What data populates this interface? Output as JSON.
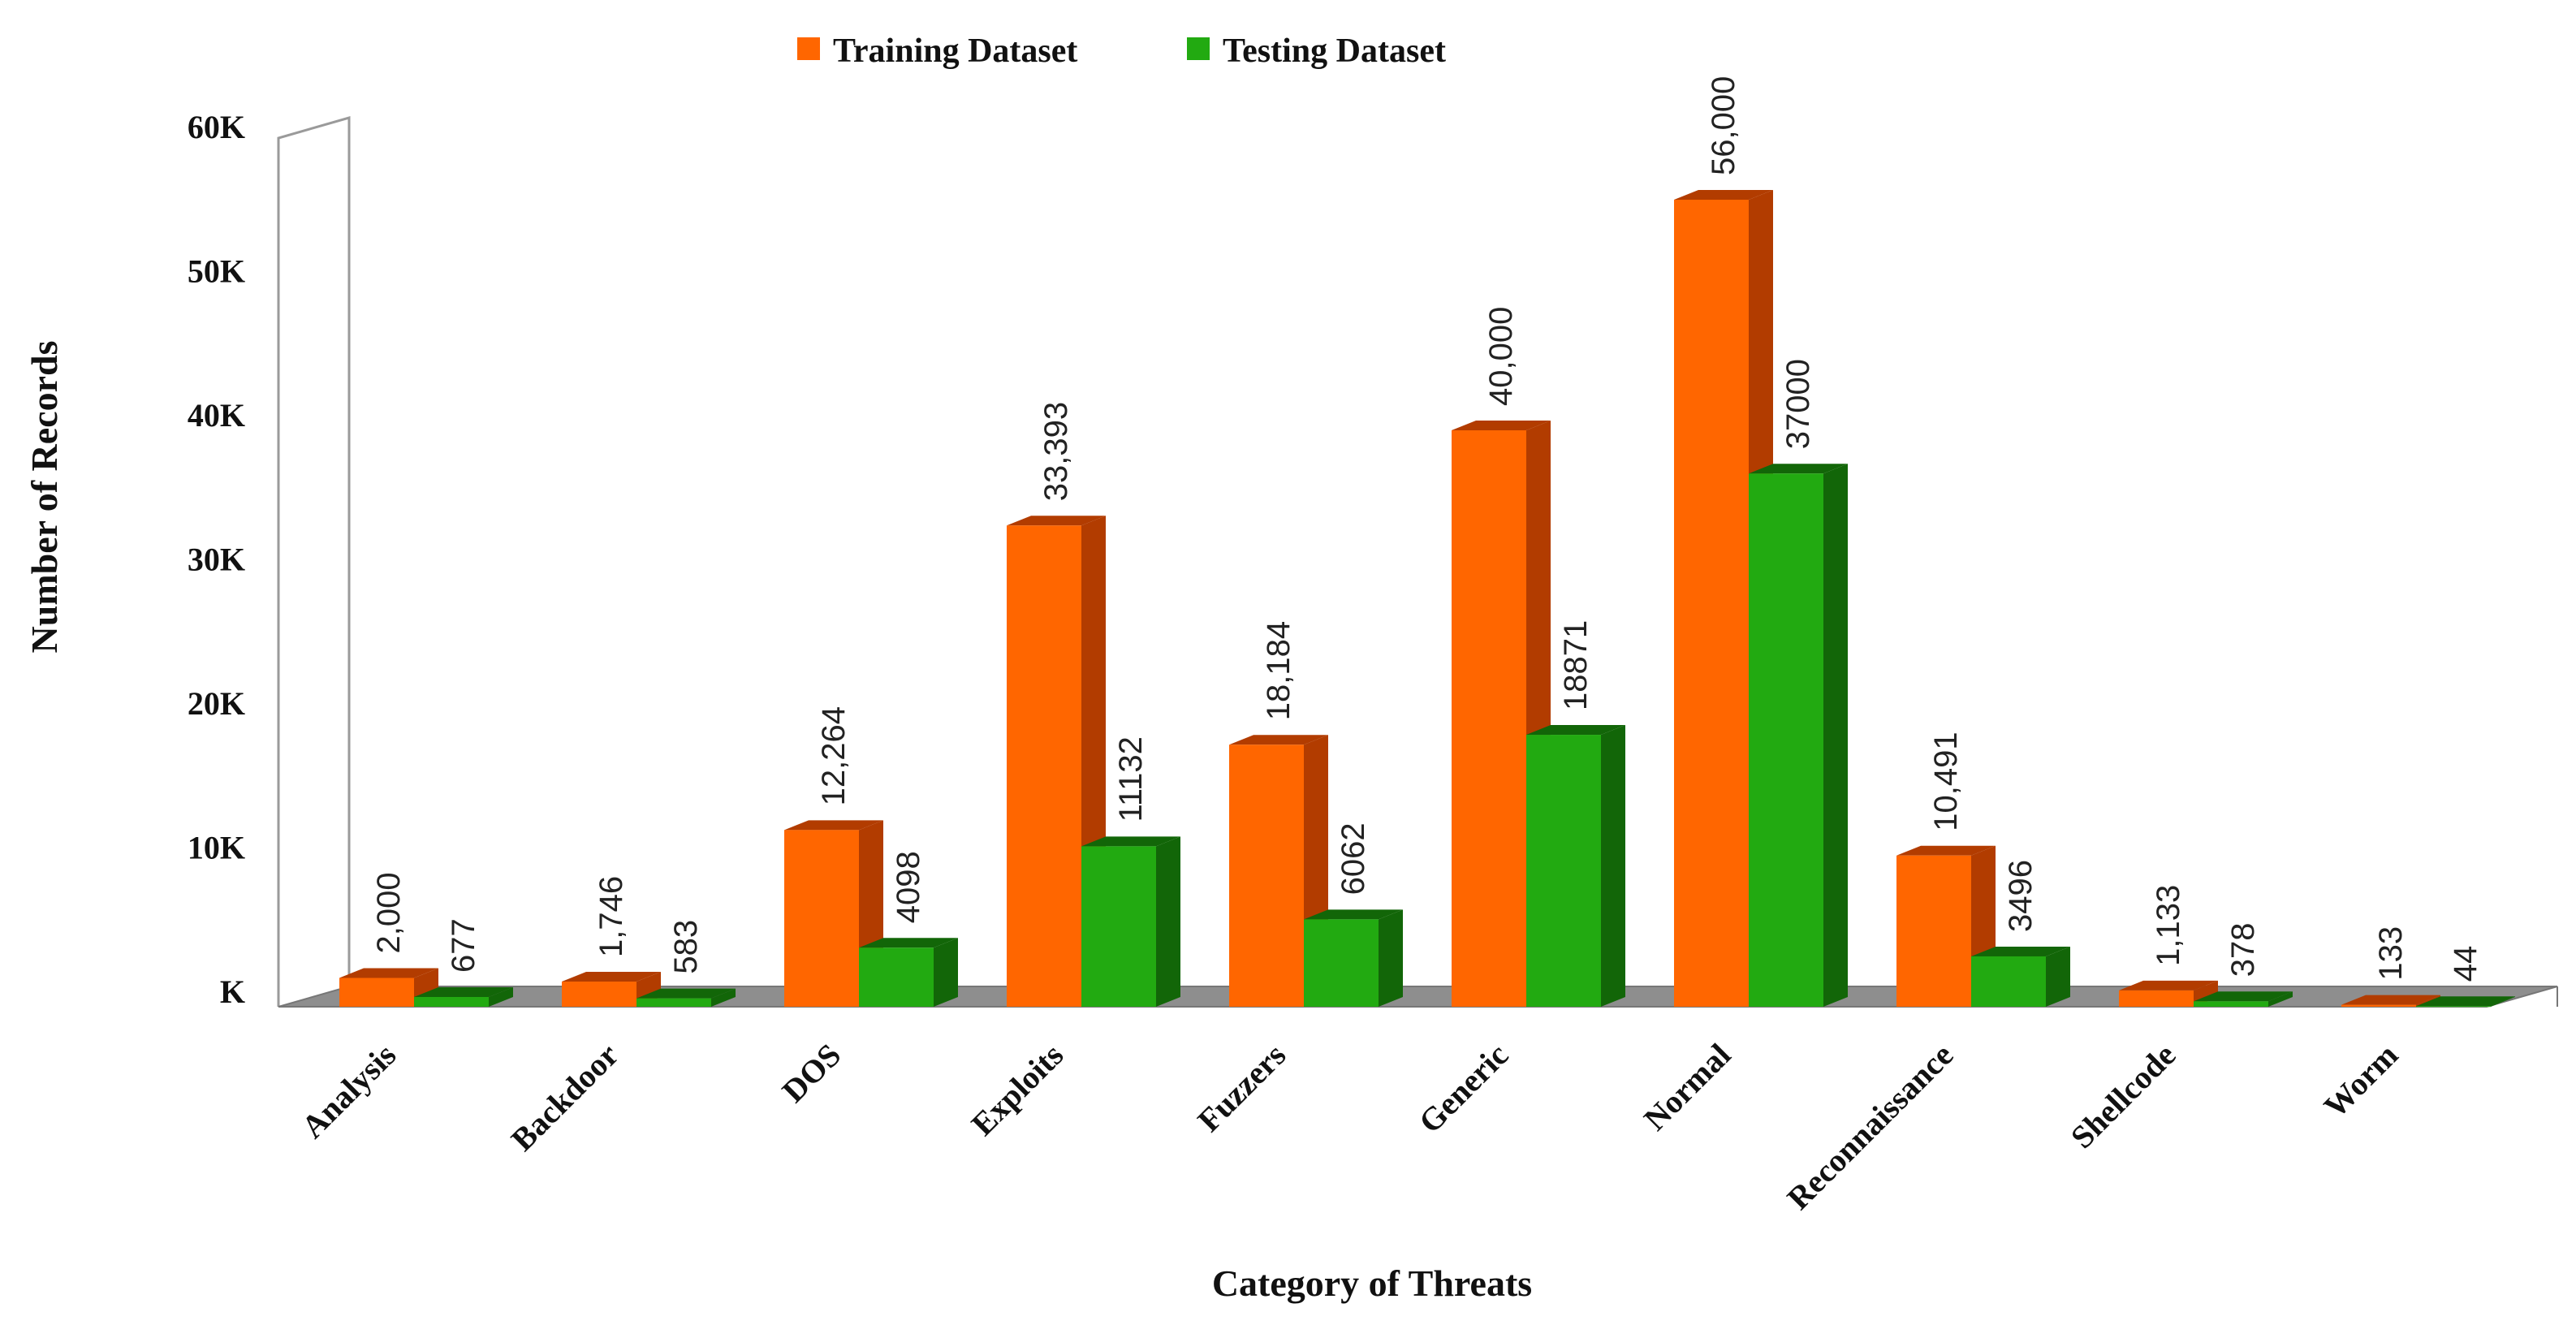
{
  "chart_data": {
    "type": "bar",
    "style": "3d-clustered-column",
    "title": "",
    "xlabel": "Category of Threats",
    "ylabel": "Number of Records",
    "ylim": [
      0,
      60000
    ],
    "ytick_values": [
      0,
      10000,
      20000,
      30000,
      40000,
      50000,
      60000
    ],
    "ytick_labels": [
      "K",
      "10K",
      "20K",
      "30K",
      "40K",
      "50K",
      "60K"
    ],
    "grid": false,
    "legend_position": "top-center",
    "categories": [
      "Analysis",
      "Backdoor",
      "DOS",
      "Exploits",
      "Fuzzers",
      "Generic",
      "Normal",
      "Reconnaissance",
      "Shellcode",
      "Worm"
    ],
    "series": [
      {
        "name": "Training Dataset",
        "color": "#ff6600",
        "side_color": "#b23c00",
        "values": [
          2000,
          1746,
          12264,
          33393,
          18184,
          40000,
          56000,
          10491,
          1133,
          133
        ],
        "labels": [
          "2,000",
          "1,746",
          "12,264",
          "33,393",
          "18,184",
          "40,000",
          "56,000",
          "10,491",
          "1,133",
          "133"
        ]
      },
      {
        "name": "Testing Dataset",
        "color": "#22aa11",
        "side_color": "#126608",
        "values": [
          677,
          583,
          4098,
          11132,
          6062,
          18871,
          37000,
          3496,
          378,
          44
        ],
        "labels": [
          "677",
          "583",
          "4098",
          "11132",
          "6062",
          "18871",
          "37000",
          "3496",
          "378",
          "44"
        ]
      }
    ]
  }
}
